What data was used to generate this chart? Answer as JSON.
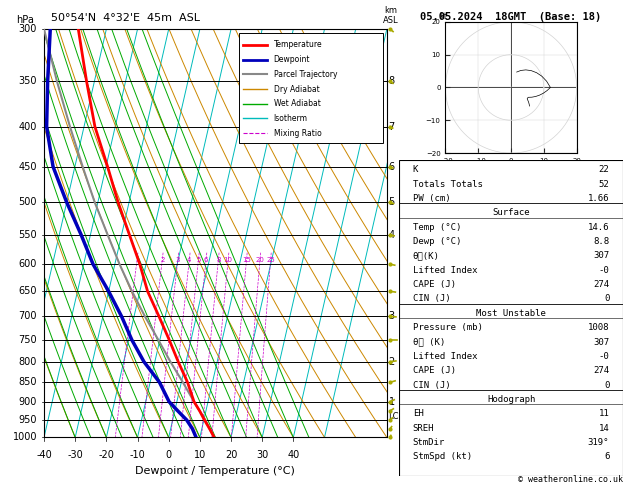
{
  "title_left": "50°54'N  4°32'E  45m  ASL",
  "title_right": "05.05.2024  18GMT  (Base: 18)",
  "xlabel": "Dewpoint / Temperature (°C)",
  "pressure_levels": [
    300,
    350,
    400,
    450,
    500,
    550,
    600,
    650,
    700,
    750,
    800,
    850,
    900,
    950,
    1000
  ],
  "temperature_profile": {
    "pressure": [
      1000,
      975,
      950,
      925,
      900,
      850,
      800,
      750,
      700,
      650,
      600,
      550,
      500,
      450,
      400,
      350,
      300
    ],
    "temp": [
      14.6,
      12.5,
      10.2,
      8.0,
      5.5,
      2.0,
      -2.5,
      -7.0,
      -12.0,
      -17.5,
      -22.0,
      -27.5,
      -33.5,
      -39.5,
      -46.5,
      -52.5,
      -59.0
    ]
  },
  "dewpoint_profile": {
    "pressure": [
      1000,
      975,
      950,
      925,
      900,
      850,
      800,
      750,
      700,
      650,
      600,
      550,
      500,
      450,
      400,
      350,
      300
    ],
    "temp": [
      8.8,
      7.0,
      4.5,
      1.0,
      -2.5,
      -7.0,
      -13.5,
      -19.0,
      -24.0,
      -30.0,
      -37.0,
      -43.0,
      -50.0,
      -57.0,
      -62.0,
      -65.0,
      -68.0
    ]
  },
  "parcel_profile": {
    "pressure": [
      1000,
      975,
      950,
      940,
      925,
      900,
      850,
      800,
      750,
      700,
      650,
      600,
      550,
      500,
      450,
      400,
      350,
      300
    ],
    "temp": [
      14.6,
      12.5,
      10.5,
      9.5,
      8.0,
      5.5,
      0.5,
      -5.0,
      -10.5,
      -16.5,
      -22.5,
      -28.5,
      -34.5,
      -41.0,
      -47.5,
      -54.5,
      -62.0,
      -70.0
    ]
  },
  "lcl_pressure": 940,
  "mixing_ratios": [
    1,
    2,
    3,
    4,
    5,
    6,
    8,
    10,
    15,
    20,
    25
  ],
  "colors": {
    "temperature": "#ff0000",
    "dewpoint": "#0000bb",
    "parcel": "#888888",
    "dry_adiabat": "#cc8800",
    "wet_adiabat": "#00aa00",
    "isotherm": "#00bbbb",
    "mixing_ratio": "#cc00cc",
    "background": "#ffffff"
  },
  "wind_profile": {
    "pressure": [
      1000,
      975,
      950,
      925,
      900,
      850,
      800,
      750,
      700,
      650,
      600,
      550,
      500,
      450,
      400,
      350,
      300
    ],
    "direction": [
      200,
      210,
      220,
      230,
      240,
      250,
      260,
      270,
      275,
      280,
      285,
      290,
      295,
      300,
      305,
      310,
      315
    ],
    "speed_kt": [
      5,
      6,
      7,
      8,
      9,
      10,
      11,
      12,
      11,
      10,
      9,
      8,
      7,
      6,
      6,
      7,
      8
    ]
  },
  "km_ticks": [
    [
      350,
      "8"
    ],
    [
      400,
      "7"
    ],
    [
      450,
      "6"
    ],
    [
      500,
      "5"
    ],
    [
      550,
      "4"
    ],
    [
      700,
      "3"
    ],
    [
      800,
      "2"
    ],
    [
      900,
      "1"
    ]
  ],
  "stats": {
    "K": 22,
    "Totals_Totals": 52,
    "PW_cm": 1.66,
    "surface_temp": 14.6,
    "surface_dewp": 8.8,
    "surface_theta_e": 307,
    "surface_lifted_index": "-0",
    "surface_CAPE": 274,
    "surface_CIN": 0,
    "mu_pressure": 1008,
    "mu_theta_e": 307,
    "mu_lifted_index": "-0",
    "mu_CAPE": 274,
    "mu_CIN": 0,
    "EH": 11,
    "SREH": 14,
    "StmDir": "319°",
    "StmSpd_kt": 6
  }
}
